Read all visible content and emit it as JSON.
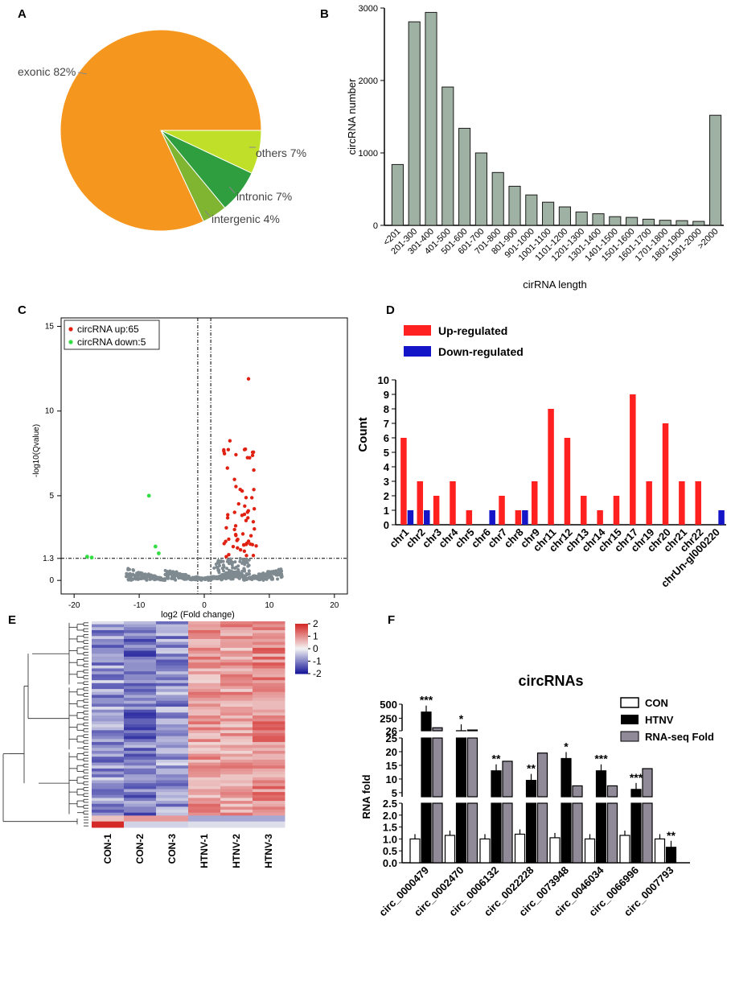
{
  "panels": {
    "A": "A",
    "B": "B",
    "C": "C",
    "D": "D",
    "E": "E",
    "F": "F"
  },
  "colors": {
    "pie_exonic": "#f5961e",
    "pie_others": "#bfdf28",
    "pie_intronic": "#2f9e3e",
    "pie_intergenic": "#7fb531",
    "bar_grey": "#9fb1a3",
    "up_red": "#ff2020",
    "down_blue": "#1515c8",
    "volcano_up": "#e02010",
    "volcano_down": "#33dd44",
    "volcano_ns": "#7f8a90",
    "heat_high": "#d42a28",
    "heat_mid": "#f4f4f4",
    "heat_low": "#1a1a9a",
    "rnaseq_bar": "#908a98"
  },
  "chart_data": [
    {
      "panel": "A",
      "type": "pie",
      "labels": [
        "exonic 82%",
        "others 7%",
        "intronic 7%",
        "intergenic 4%"
      ],
      "values": [
        82,
        7,
        7,
        4
      ]
    },
    {
      "panel": "B",
      "type": "bar",
      "categories": [
        "<201",
        "201-300",
        "301-400",
        "401-500",
        "501-600",
        "601-700",
        "701-800",
        "801-900",
        "901-1000",
        "1001-1100",
        "1101-1200",
        "1201-1300",
        "1301-1400",
        "1401-1500",
        "1501-1600",
        "1601-1700",
        "1701-1800",
        "1801-1900",
        "1901-2000",
        ">2000"
      ],
      "values": [
        840,
        2810,
        2940,
        1910,
        1340,
        1000,
        730,
        540,
        420,
        320,
        255,
        185,
        160,
        120,
        110,
        85,
        70,
        65,
        55,
        1520
      ],
      "ylabel": "circRNA number",
      "xlabel": "cirRNA length",
      "ylim": [
        0,
        3000
      ],
      "yticks": [
        "0",
        "1000",
        "2000",
        "3000"
      ]
    },
    {
      "panel": "C",
      "type": "scatter",
      "legend": [
        "circRNA up:65",
        "circRNA down:5"
      ],
      "xlabel": "log2 (Fold change)",
      "ylabel": "-log10(Qvalue)",
      "xlim": [
        -22,
        22
      ],
      "ylim": [
        -0.8,
        15.5
      ],
      "xticks": [
        "-20",
        "-10",
        "0",
        "10",
        "20"
      ],
      "yticks": [
        "0",
        "1.3",
        "5",
        "10",
        "15"
      ],
      "vlines": [
        -1,
        1
      ],
      "hline": 1.3,
      "down_points": [
        [
          -18,
          1.4
        ],
        [
          -17.3,
          1.35
        ],
        [
          -8.5,
          5.0
        ],
        [
          -7.5,
          2.0
        ],
        [
          -7,
          1.6
        ]
      ]
    },
    {
      "panel": "D",
      "type": "bar",
      "legend": [
        "Up-regulated",
        "Down-regulated"
      ],
      "ylabel": "Count",
      "ylim": [
        0,
        10
      ],
      "yticks": [
        "0",
        "1",
        "2",
        "3",
        "4",
        "5",
        "6",
        "7",
        "8",
        "9",
        "10"
      ],
      "categories": [
        "chr1",
        "chr2",
        "chr3",
        "chr4",
        "chr5",
        "chr6",
        "chr7",
        "chr8",
        "chr9",
        "chr11",
        "chr12",
        "chr13",
        "chr14",
        "chr15",
        "chr17",
        "chr19",
        "chr20",
        "chr21",
        "chr22",
        "chrUn-gl000220"
      ],
      "series": [
        {
          "name": "Up-regulated",
          "values": [
            6,
            3,
            2,
            3,
            1,
            0,
            2,
            1,
            3,
            8,
            6,
            2,
            1,
            2,
            9,
            3,
            7,
            3,
            3,
            0
          ]
        },
        {
          "name": "Down-regulated",
          "values": [
            1,
            1,
            0,
            0,
            0,
            1,
            0,
            1,
            0,
            0,
            0,
            0,
            0,
            0,
            0,
            0,
            0,
            0,
            0,
            1
          ]
        }
      ]
    },
    {
      "panel": "E",
      "type": "heatmap",
      "columns": [
        "CON-1",
        "CON-2",
        "CON-3",
        "HTNV-1",
        "HTNV-2",
        "HTNV-3"
      ],
      "scale_ticks": [
        "2",
        "1",
        "0",
        "-1",
        "-2"
      ],
      "range": [
        -2,
        2
      ]
    },
    {
      "panel": "F",
      "type": "bar",
      "title": "circRNAs",
      "ylabel": "RNA fold",
      "legend": [
        "CON",
        "HTNV",
        "RNA-seq Fold"
      ],
      "categories": [
        "circ_0000479",
        "circ_0002470",
        "circ_0006132",
        "circ_0022228",
        "circ_0073948",
        "circ_0046034",
        "circ_0066996",
        "circ_0007793"
      ],
      "series": [
        {
          "name": "CON",
          "values": [
            1.0,
            1.15,
            1.0,
            1.2,
            1.05,
            1.0,
            1.15,
            1.0
          ]
        },
        {
          "name": "HTNV",
          "values": [
            360,
            27,
            13,
            9.5,
            17.5,
            13,
            6.2,
            0.65
          ]
        },
        {
          "name": "RNA-seq Fold",
          "values": [
            80,
            40,
            16.5,
            19.5,
            7.5,
            7.5,
            13.8,
            null
          ]
        }
      ],
      "significance": [
        "***",
        "*",
        "**",
        "**",
        "*",
        "***",
        "***",
        "**"
      ],
      "yticks_top": [
        "26",
        "250",
        "500"
      ],
      "yticks_mid": [
        "5",
        "10",
        "15",
        "20",
        "25"
      ],
      "yticks_low": [
        "0.0",
        "0.5",
        "1.0",
        "1.5",
        "2.0",
        "2.5"
      ]
    }
  ]
}
